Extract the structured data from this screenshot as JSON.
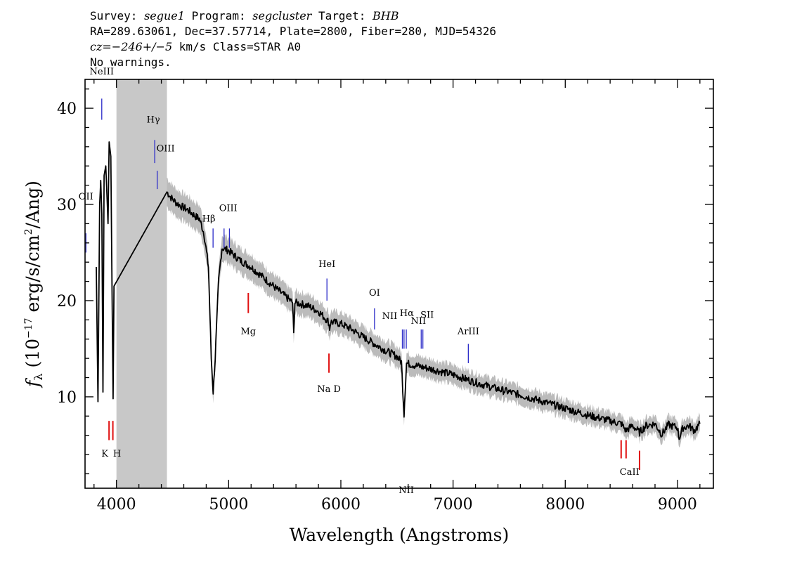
{
  "header": {
    "line1_prefix": "Survey: ",
    "survey": "segue1",
    "line1_mid": " Program: ",
    "program": "segcluster",
    "line1_mid2": " Target: ",
    "target": "BHB",
    "line2": "RA=289.63061, Dec=37.57714, Plate=2800, Fiber=280, MJD=54326",
    "cz_label": "cz",
    "cz_value": "=−246+/−5",
    "line3_rest": " km/s Class=STAR A0",
    "line4": "No warnings."
  },
  "chart_data": {
    "type": "line",
    "xlabel": "Wavelength (Angstroms)",
    "ylabel": "f_λ (10^-17 erg/s/cm^2/Ang)",
    "xlim": [
      3720,
      9320
    ],
    "ylim": [
      0.5,
      43
    ],
    "x_ticks": [
      4000,
      5000,
      6000,
      7000,
      8000,
      9000
    ],
    "y_ticks": [
      10,
      20,
      30,
      40
    ],
    "masked_region": [
      4000,
      4450
    ],
    "colors": {
      "spectrum": "#000000",
      "error": "#bbbbbb",
      "mask": "#c8c8c8",
      "emission": "#2a2ac8",
      "absorption": "#e01010"
    },
    "spectrum": [
      [
        3820,
        23.5
      ],
      [
        3835,
        9.5
      ],
      [
        3850,
        30
      ],
      [
        3860,
        32.5
      ],
      [
        3870,
        29
      ],
      [
        3880,
        10.5
      ],
      [
        3890,
        33
      ],
      [
        3905,
        34
      ],
      [
        3925,
        28
      ],
      [
        3935,
        36.5
      ],
      [
        3950,
        35
      ],
      [
        3960,
        22
      ],
      [
        3970,
        9.8
      ],
      [
        3978,
        21.5
      ],
      [
        4450,
        31.3
      ],
      [
        4480,
        30.8
      ],
      [
        4530,
        30.2
      ],
      [
        4580,
        29.8
      ],
      [
        4640,
        29.4
      ],
      [
        4700,
        28.8
      ],
      [
        4740,
        28.5
      ],
      [
        4780,
        27
      ],
      [
        4820,
        23.5
      ],
      [
        4845,
        14
      ],
      [
        4862,
        10.5
      ],
      [
        4880,
        14
      ],
      [
        4910,
        22
      ],
      [
        4940,
        25.5
      ],
      [
        5000,
        25.2
      ],
      [
        5100,
        24.2
      ],
      [
        5200,
        23.5
      ],
      [
        5300,
        22.5
      ],
      [
        5400,
        21.5
      ],
      [
        5500,
        20.5
      ],
      [
        5570,
        19.8
      ],
      [
        5580,
        16.5
      ],
      [
        5590,
        19.8
      ],
      [
        5700,
        19.5
      ],
      [
        5800,
        18.9
      ],
      [
        5890,
        17.8
      ],
      [
        5900,
        17.1
      ],
      [
        5910,
        17.8
      ],
      [
        6000,
        17.6
      ],
      [
        6100,
        17
      ],
      [
        6200,
        16.2
      ],
      [
        6300,
        15.5
      ],
      [
        6400,
        14.8
      ],
      [
        6500,
        14.2
      ],
      [
        6540,
        13.6
      ],
      [
        6563,
        8.2
      ],
      [
        6585,
        13.5
      ],
      [
        6650,
        13.3
      ],
      [
        6800,
        12.9
      ],
      [
        7000,
        12.3
      ],
      [
        7200,
        11.5
      ],
      [
        7400,
        10.8
      ],
      [
        7600,
        10.2
      ],
      [
        7800,
        9.5
      ],
      [
        8000,
        8.8
      ],
      [
        8200,
        8.1
      ],
      [
        8400,
        7.5
      ],
      [
        8500,
        7.2
      ],
      [
        8540,
        6.5
      ],
      [
        8600,
        7
      ],
      [
        8662,
        6.3
      ],
      [
        8720,
        7
      ],
      [
        8800,
        7.2
      ],
      [
        8860,
        6.1
      ],
      [
        8920,
        7.1
      ],
      [
        9000,
        6.8
      ],
      [
        9015,
        5.7
      ],
      [
        9050,
        6.8
      ],
      [
        9100,
        7
      ],
      [
        9150,
        6.5
      ],
      [
        9200,
        7.2
      ]
    ],
    "lines": [
      {
        "label": "NeIII",
        "wave": 3869,
        "y1": 38.8,
        "y2": 41,
        "color": "emission",
        "label_y": 43.5,
        "dx": 0
      },
      {
        "label": "OII",
        "wave": 3728,
        "y1": 25,
        "y2": 27,
        "color": "emission",
        "label_y": 30.5,
        "dx": 0
      },
      {
        "label": "Hγ",
        "wave": 4341,
        "y1": 34.3,
        "y2": 36.7,
        "color": "emission",
        "label_y": 38.5,
        "dx": -2
      },
      {
        "label": "OIII",
        "wave": 4363,
        "y1": 31.6,
        "y2": 33.5,
        "color": "emission",
        "label_y": 35.5,
        "dx": 12
      },
      {
        "label": "Hβ",
        "wave": 4861,
        "y1": 25.5,
        "y2": 27.5,
        "color": "emission",
        "label_y": 28.2,
        "dx": -6
      },
      {
        "label": "OIII",
        "wave": 4959,
        "y1": 25.5,
        "y2": 27.5,
        "color": "emission",
        "label_y": 29.3,
        "dx": 6
      },
      {
        "label": "",
        "wave": 5007,
        "y1": 25.5,
        "y2": 27.5,
        "color": "emission",
        "label_y": 0,
        "dx": 0
      },
      {
        "label": "HeI",
        "wave": 5876,
        "y1": 20,
        "y2": 22.3,
        "color": "emission",
        "label_y": 23.5,
        "dx": 0
      },
      {
        "label": "OI",
        "wave": 6300,
        "y1": 17,
        "y2": 19.2,
        "color": "emission",
        "label_y": 20.5,
        "dx": 0
      },
      {
        "label": "NII",
        "wave": 6548,
        "y1": 15,
        "y2": 17,
        "color": "emission",
        "label_y": 18.1,
        "dx": -18
      },
      {
        "label": "Hα",
        "wave": 6563,
        "y1": 15,
        "y2": 17,
        "color": "emission",
        "label_y": 18.4,
        "dx": 4
      },
      {
        "label": "NII",
        "wave": 6583,
        "y1": 15,
        "y2": 17,
        "color": "emission",
        "label_y": 0,
        "dx": 0
      },
      {
        "label": "NII",
        "wave": 6716,
        "y1": 15,
        "y2": 17,
        "color": "emission",
        "label_y": 17.6,
        "dx": -4
      },
      {
        "label": "SII",
        "wave": 6731,
        "y1": 15,
        "y2": 17,
        "color": "emission",
        "label_y": 18.2,
        "dx": 6
      },
      {
        "label": "ArIII",
        "wave": 7136,
        "y1": 13.5,
        "y2": 15.5,
        "color": "emission",
        "label_y": 16.5,
        "dx": 0
      },
      {
        "label": "K",
        "wave": 3934,
        "y1": 5.5,
        "y2": 7.5,
        "color": "absorption",
        "label_y": 3.8,
        "dx": -6
      },
      {
        "label": "H",
        "wave": 3968,
        "y1": 5.5,
        "y2": 7.5,
        "color": "absorption",
        "label_y": 3.8,
        "dx": 6
      },
      {
        "label": "Mg",
        "wave": 5175,
        "y1": 18.7,
        "y2": 20.8,
        "color": "absorption",
        "label_y": 16.5,
        "dx": 0
      },
      {
        "label": "Na D",
        "wave": 5894,
        "y1": 12.5,
        "y2": 14.5,
        "color": "absorption",
        "label_y": 10.5,
        "dx": 0
      },
      {
        "label": "CaII",
        "wave": 8498,
        "y1": 3.6,
        "y2": 5.5,
        "color": "absorption",
        "label_y": 1.9,
        "dx": 12
      },
      {
        "label": "",
        "wave": 8542,
        "y1": 3.6,
        "y2": 5.5,
        "color": "absorption",
        "label_y": 0,
        "dx": 0
      },
      {
        "label": "",
        "wave": 8662,
        "y1": 2.4,
        "y2": 4.4,
        "color": "absorption",
        "label_y": 0,
        "dx": 0
      }
    ]
  }
}
